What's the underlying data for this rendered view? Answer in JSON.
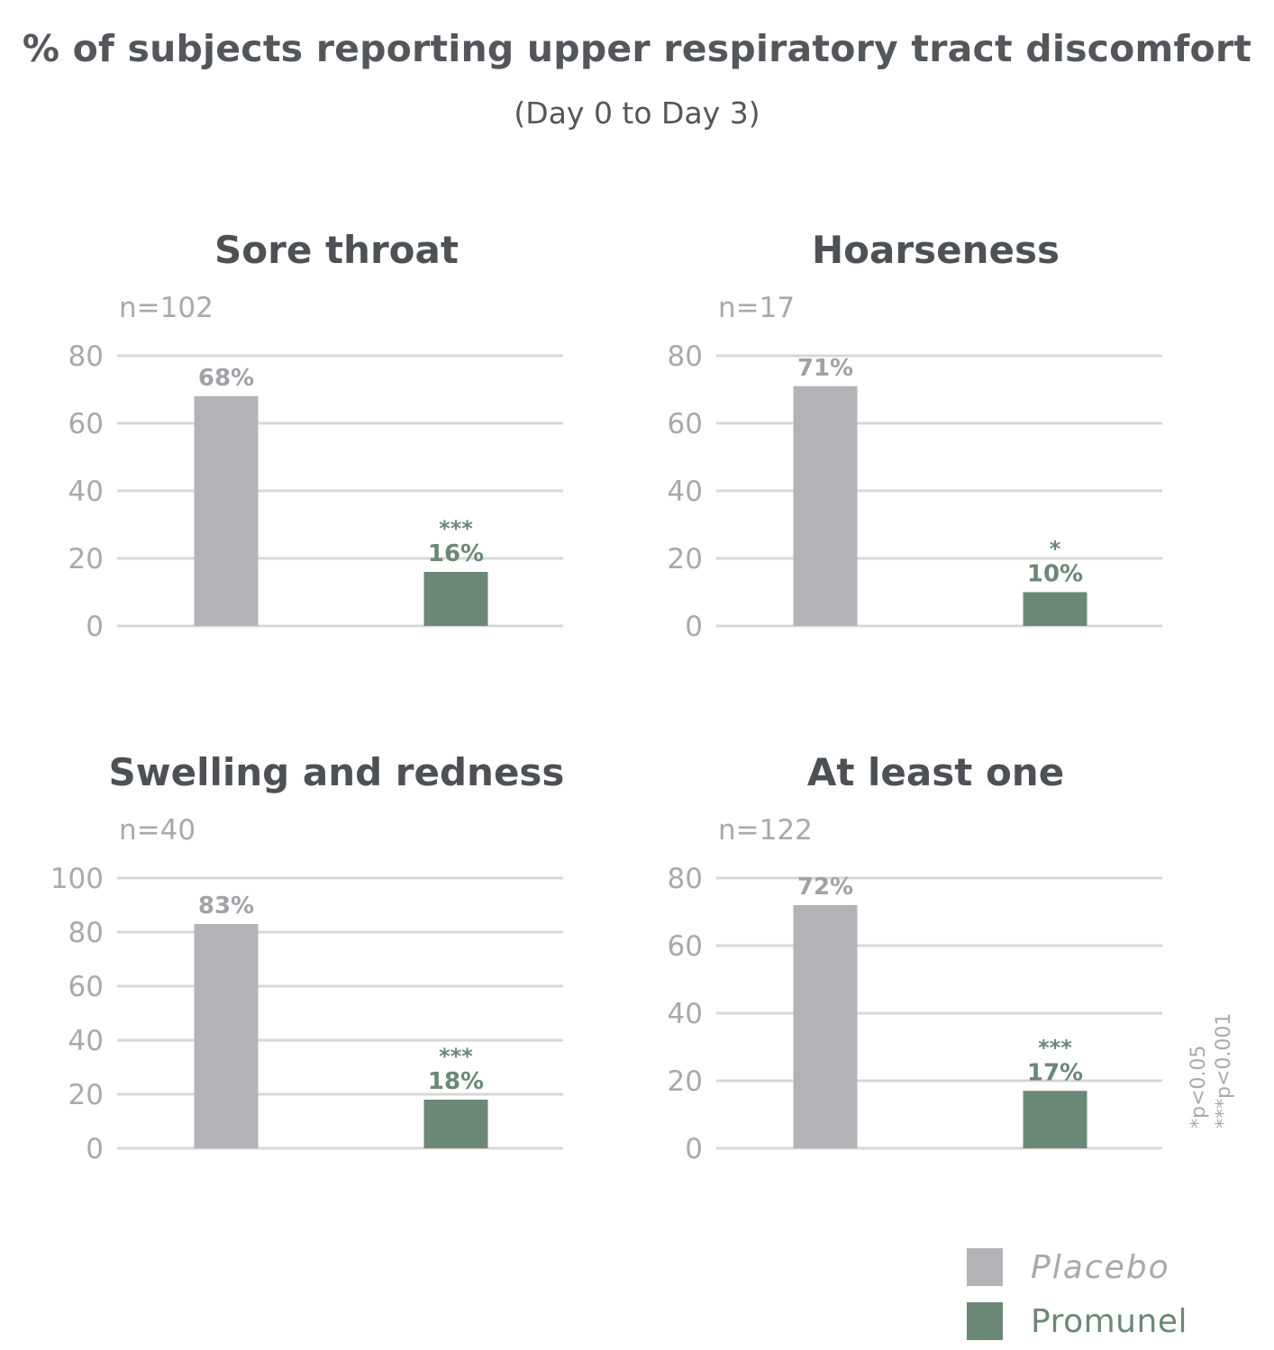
{
  "title": "% of subjects reporting upper respiratory tract discomfort",
  "subtitle": "(Day 0 to Day 3)",
  "colors": {
    "placebo": "#b2b3b6",
    "promunel": "#6b8876",
    "title": "#4d5155",
    "axis_text": "#a7a9ac",
    "grid": "#d7d7d8"
  },
  "footnotes": [
    "*p<0.05",
    "***p<0.001"
  ],
  "legend": [
    {
      "label": "Placebo",
      "color": "#b2b3b6",
      "italic": true
    },
    {
      "label": "Promunel",
      "color": "#6b8876",
      "italic": false
    }
  ],
  "chart_data": [
    {
      "type": "bar",
      "title": "Sore throat",
      "n_label": "n=102",
      "ylim": [
        0,
        80
      ],
      "yticks": [
        0,
        20,
        40,
        60,
        80
      ],
      "categories": [
        "Placebo",
        "Promunel"
      ],
      "values": [
        68,
        16
      ],
      "value_labels": [
        "68%",
        "16%"
      ],
      "significance": [
        "",
        "***"
      ],
      "colors": [
        "#b2b3b6",
        "#6b8876"
      ]
    },
    {
      "type": "bar",
      "title": "Hoarseness",
      "n_label": "n=17",
      "ylim": [
        0,
        80
      ],
      "yticks": [
        0,
        20,
        40,
        60,
        80
      ],
      "categories": [
        "Placebo",
        "Promunel"
      ],
      "values": [
        71,
        10
      ],
      "value_labels": [
        "71%",
        "10%"
      ],
      "significance": [
        "",
        "*"
      ],
      "colors": [
        "#b2b3b6",
        "#6b8876"
      ]
    },
    {
      "type": "bar",
      "title": "Swelling and redness",
      "n_label": "n=40",
      "ylim": [
        0,
        100
      ],
      "yticks": [
        0,
        20,
        40,
        60,
        80,
        100
      ],
      "categories": [
        "Placebo",
        "Promunel"
      ],
      "values": [
        83,
        18
      ],
      "value_labels": [
        "83%",
        "18%"
      ],
      "significance": [
        "",
        "***"
      ],
      "colors": [
        "#b2b3b6",
        "#6b8876"
      ]
    },
    {
      "type": "bar",
      "title": "At least one",
      "n_label": "n=122",
      "ylim": [
        0,
        80
      ],
      "yticks": [
        0,
        20,
        40,
        60,
        80
      ],
      "categories": [
        "Placebo",
        "Promunel"
      ],
      "values": [
        72,
        17
      ],
      "value_labels": [
        "72%",
        "17%"
      ],
      "significance": [
        "",
        "***"
      ],
      "colors": [
        "#b2b3b6",
        "#6b8876"
      ]
    }
  ]
}
